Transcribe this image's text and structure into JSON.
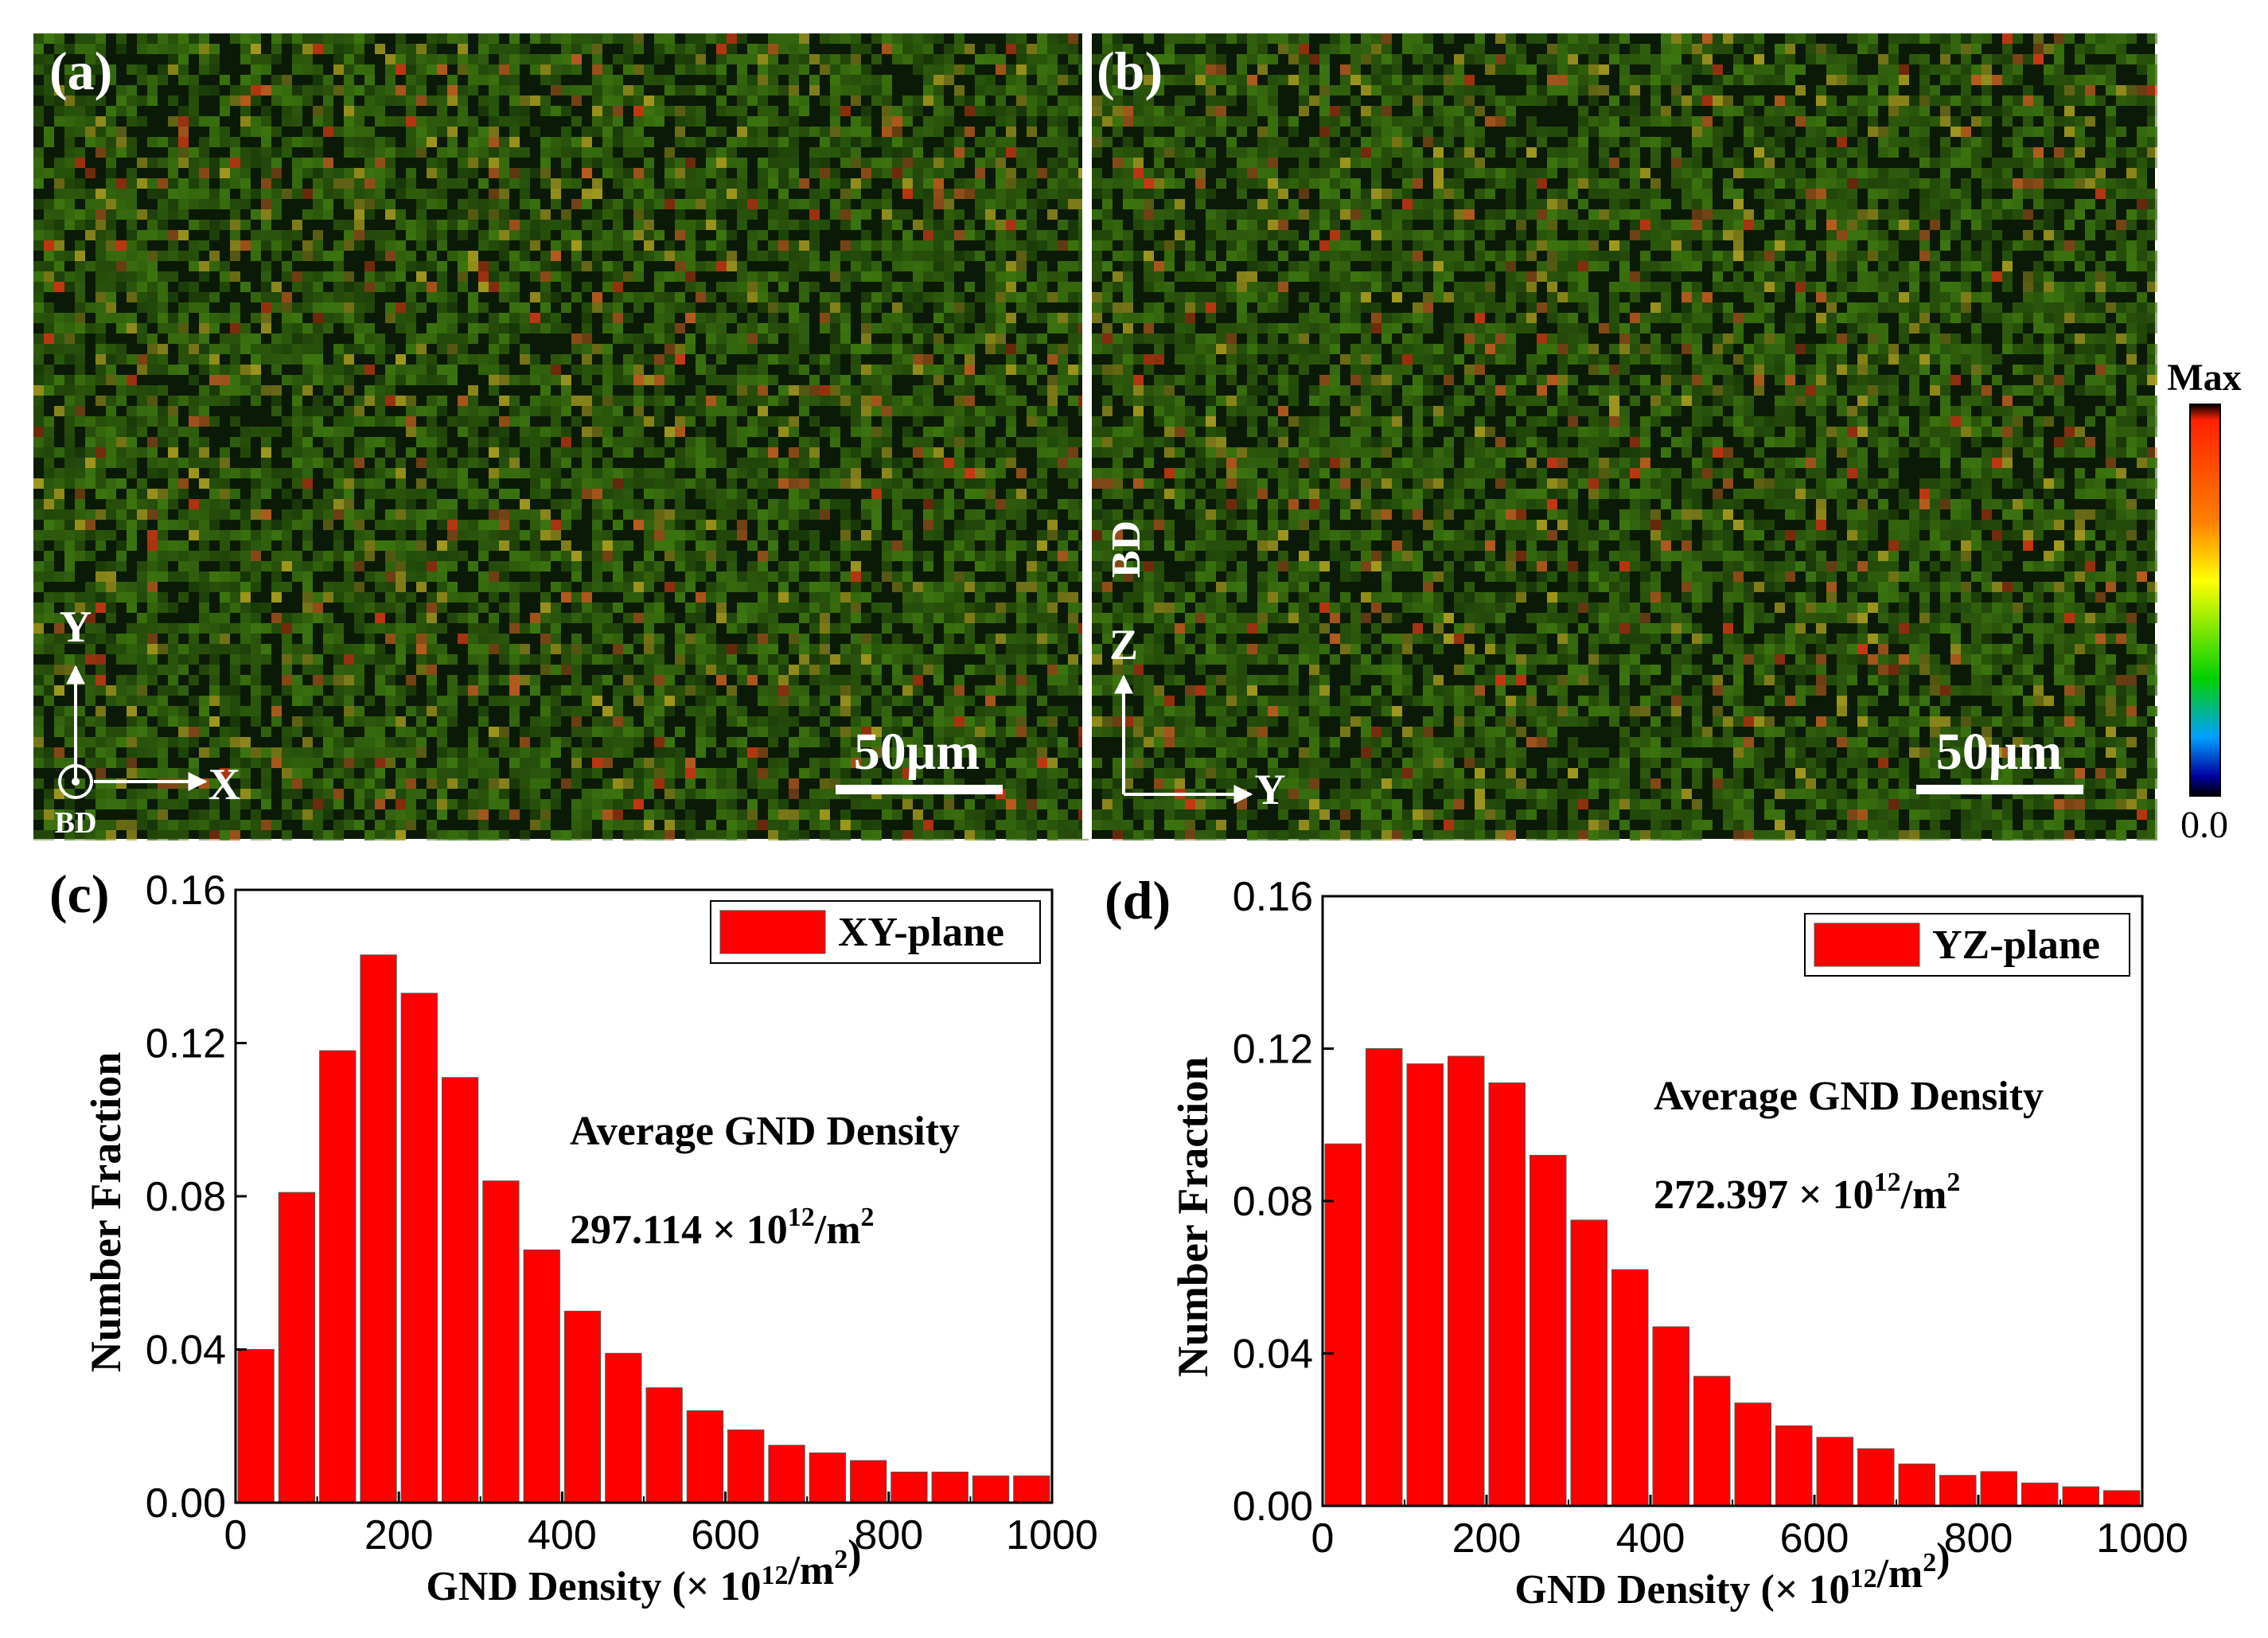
{
  "panels": {
    "a": {
      "label": "(a)",
      "scale_bar": "50μm",
      "axes": {
        "up": "Y",
        "right": "X",
        "normal": "BD"
      }
    },
    "b": {
      "label": "(b)",
      "scale_bar": "50μm",
      "axes": {
        "up": "Z",
        "right": "Y",
        "side": "BD"
      }
    }
  },
  "colorbar": {
    "max_label": "Max",
    "min_label": "0.0",
    "colors": [
      "#000000",
      "#ff2000",
      "#ff8000",
      "#ffff00",
      "#00d000",
      "#00a0ff",
      "#0000a0",
      "#000000"
    ]
  },
  "map_colors": {
    "background": "#0b1a06",
    "green": "#3f7a10",
    "dark": "#06100a",
    "yellow": "#a8a020",
    "orange": "#c06020",
    "red": "#d03a14"
  },
  "chart_data": [
    {
      "panel_label": "(c)",
      "type": "bar",
      "x": [
        25,
        75,
        125,
        175,
        225,
        275,
        325,
        375,
        425,
        475,
        525,
        575,
        625,
        675,
        725,
        775,
        825,
        875,
        925,
        975
      ],
      "values": [
        0.04,
        0.081,
        0.118,
        0.143,
        0.133,
        0.111,
        0.084,
        0.066,
        0.05,
        0.039,
        0.03,
        0.024,
        0.019,
        0.015,
        0.013,
        0.011,
        0.008,
        0.008,
        0.007,
        0.007
      ],
      "series_name": "XY-plane",
      "bar_color": "#ff0000",
      "xlim": [
        0,
        1000
      ],
      "ylim": [
        0,
        0.16
      ],
      "xticks": [
        "0",
        "200",
        "400",
        "600",
        "800",
        "1000"
      ],
      "yticks": [
        "0.00",
        "0.04",
        "0.08",
        "0.12",
        "0.16"
      ],
      "xtick_values": [
        0,
        200,
        400,
        600,
        800,
        1000
      ],
      "ytick_values": [
        0,
        0.04,
        0.08,
        0.12,
        0.16
      ],
      "xlabel_main": "GND Density (× 10",
      "xlabel_exp": "12",
      "xlabel_unit": "/m",
      "xlabel_exp2": "2",
      "xlabel_close": ")",
      "ylabel": "Number Fraction",
      "annotation_title": "Average GND Density",
      "annotation_value": "297.114 ×  10",
      "annotation_exp": "12",
      "annotation_unit": "/m",
      "annotation_exp2": "2"
    },
    {
      "panel_label": "(d)",
      "type": "bar",
      "x": [
        25,
        75,
        125,
        175,
        225,
        275,
        325,
        375,
        425,
        475,
        525,
        575,
        625,
        675,
        725,
        775,
        825,
        875,
        925,
        975
      ],
      "values": [
        0.095,
        0.12,
        0.116,
        0.118,
        0.111,
        0.092,
        0.075,
        0.062,
        0.047,
        0.034,
        0.027,
        0.021,
        0.018,
        0.015,
        0.011,
        0.008,
        0.009,
        0.006,
        0.005,
        0.004
      ],
      "series_name": "YZ-plane",
      "bar_color": "#ff0000",
      "xlim": [
        0,
        1000
      ],
      "ylim": [
        0,
        0.16
      ],
      "xticks": [
        "0",
        "200",
        "400",
        "600",
        "800",
        "1000"
      ],
      "yticks": [
        "0.00",
        "0.04",
        "0.08",
        "0.12",
        "0.16"
      ],
      "xtick_values": [
        0,
        200,
        400,
        600,
        800,
        1000
      ],
      "ytick_values": [
        0,
        0.04,
        0.08,
        0.12,
        0.16
      ],
      "xlabel_main": "GND Density (× 10",
      "xlabel_exp": "12",
      "xlabel_unit": "/m",
      "xlabel_exp2": "2",
      "xlabel_close": ")",
      "ylabel": "Number Fraction",
      "annotation_title": "Average GND Density",
      "annotation_value": "272.397 ×  10",
      "annotation_exp": "12",
      "annotation_unit": "/m",
      "annotation_exp2": "2"
    }
  ]
}
